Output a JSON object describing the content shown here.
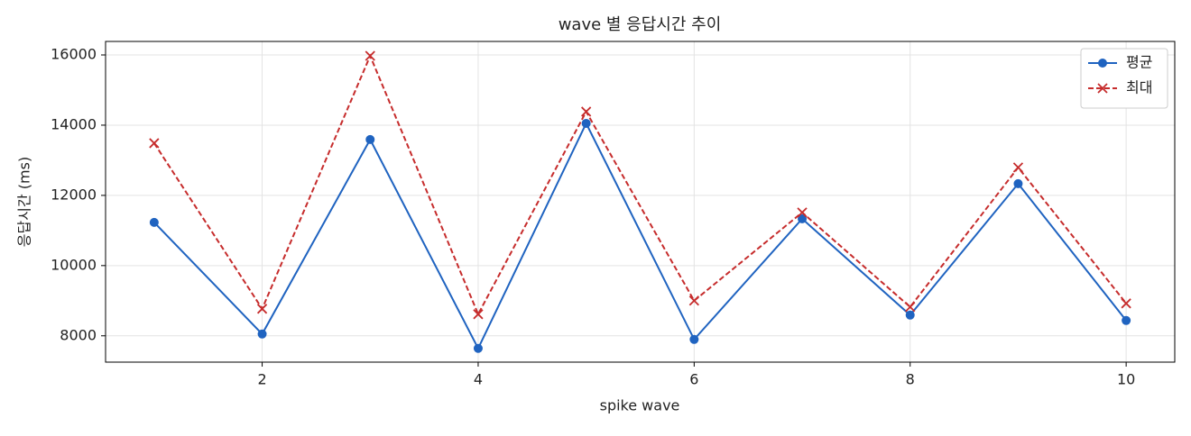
{
  "chart_data": {
    "type": "line",
    "title": "wave 별 응답시간 추이",
    "x_label": "spike wave",
    "y_label": "응답시간 (ms)",
    "x": [
      1,
      2,
      3,
      4,
      5,
      6,
      7,
      8,
      9,
      10
    ],
    "series": [
      {
        "name": "평균",
        "color": "#1f63c0",
        "marker": "circle",
        "dash": "solid",
        "values": [
          11231,
          8051,
          13590,
          7641,
          14051,
          7897,
          11333,
          8590,
          12333,
          8436
        ]
      },
      {
        "name": "최대",
        "color": "#c62c2c",
        "marker": "x",
        "dash": "dashed",
        "values": [
          13487,
          8769,
          15974,
          8615,
          14385,
          9000,
          11513,
          8821,
          12795,
          8923
        ]
      }
    ],
    "xlim": [
      0.55,
      10.45
    ],
    "ylim": [
      7250,
      16385
    ],
    "xticks": [
      2,
      4,
      6,
      8,
      10
    ],
    "yticks": [
      8000,
      10000,
      12000,
      14000,
      16000
    ],
    "grid": true,
    "legend": "upper right"
  }
}
